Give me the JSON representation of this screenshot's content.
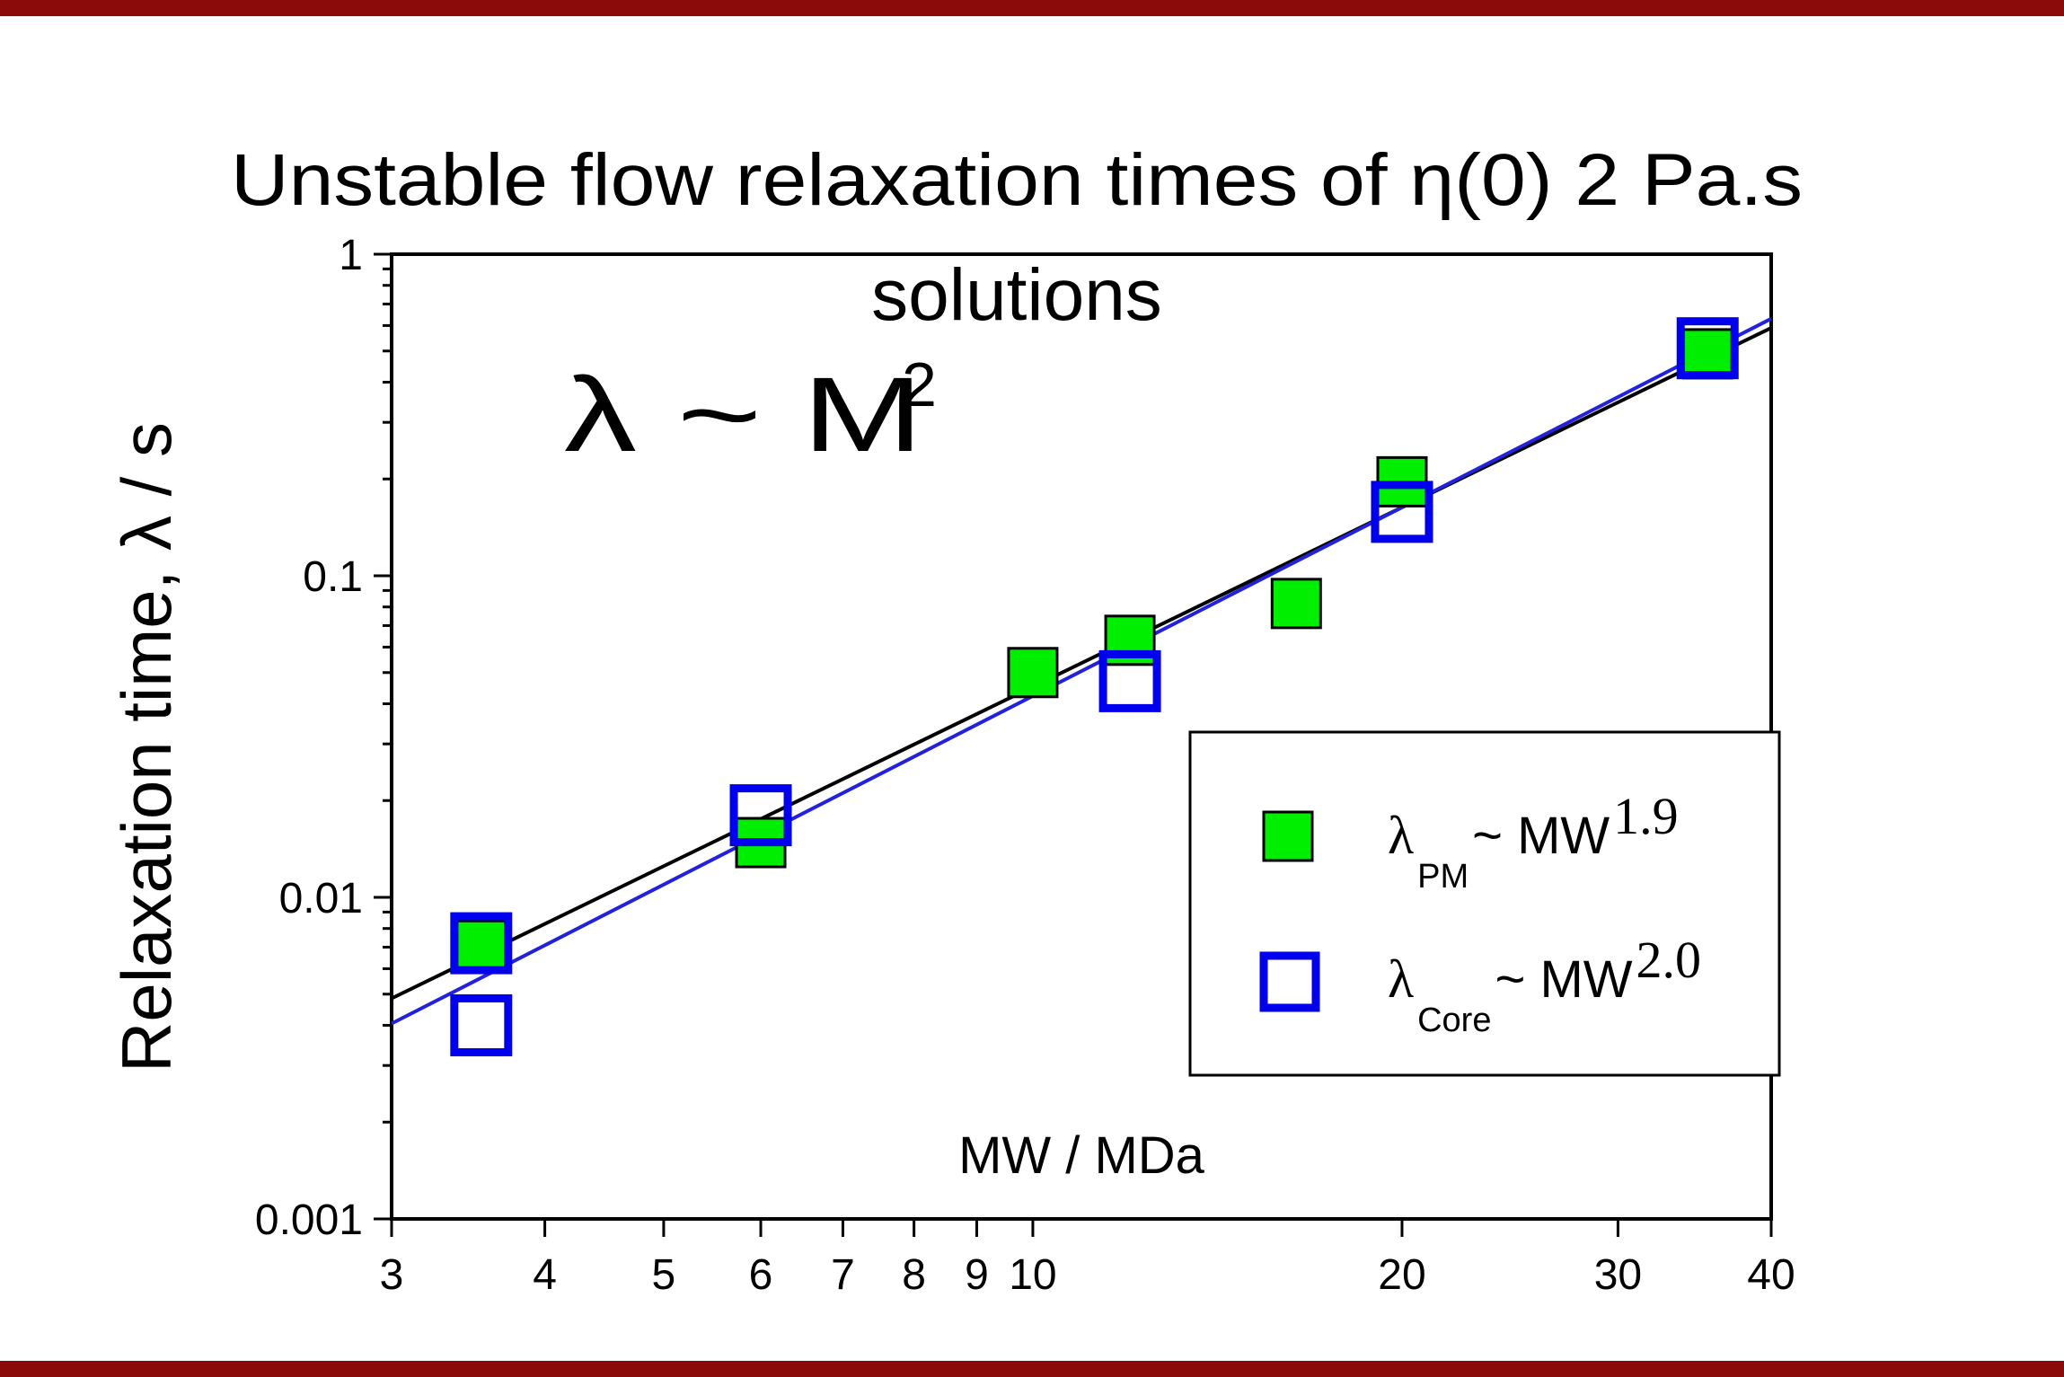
{
  "chart_data": {
    "type": "scatter",
    "title_line1": "Unstable flow relaxation times of η(0) 2 Pa.s",
    "title_line2": "solutions",
    "annotation": {
      "base": "λ ~ M",
      "sup": "2"
    },
    "xlabel": "MW / MDa",
    "ylabel": "Relaxation time, λ / s",
    "x_scale": "log",
    "y_scale": "log",
    "xlim": [
      3,
      40
    ],
    "ylim": [
      0.001,
      1
    ],
    "x_ticks": [
      3,
      4,
      5,
      6,
      7,
      8,
      9,
      10,
      20,
      30,
      40
    ],
    "x_tick_labels": [
      "3",
      "4",
      "5",
      "6",
      "7",
      "8",
      "9",
      "10",
      "20",
      "30",
      "40"
    ],
    "y_ticks": [
      0.001,
      0.01,
      0.1,
      1
    ],
    "y_tick_labels": [
      "0.001",
      "0.01",
      "0.1",
      "1"
    ],
    "grid": false,
    "legend_position": "lower-right",
    "colors": {
      "pm_fill": "#00ee00",
      "core_edge": "#0000ee",
      "fit_pm": "#000000",
      "fit_core": "#2222dd",
      "frame_band": "#8b0a0a"
    },
    "series": [
      {
        "legend": {
          "main": "λ",
          "sub": "PM",
          "tail": " ~ MW",
          "sup": "1.9"
        },
        "marker": "filled-square",
        "x": [
          3.55,
          6.0,
          10.0,
          12.0,
          16.4,
          20.0,
          35.5
        ],
        "y": [
          0.0071,
          0.0148,
          0.05,
          0.063,
          0.082,
          0.196,
          0.49
        ],
        "fit": {
          "x": [
            3.0,
            40.0
          ],
          "y": [
            0.00485,
            0.59
          ]
        }
      },
      {
        "legend": {
          "main": "λ",
          "sub": "Core",
          "tail": " ~ MW",
          "sup": "2.0"
        },
        "marker": "open-square",
        "x": [
          3.55,
          3.55,
          6.0,
          12.0,
          20.0,
          35.5
        ],
        "y": [
          0.0072,
          0.004,
          0.018,
          0.047,
          0.158,
          0.51
        ],
        "fit": {
          "x": [
            3.0,
            40.0
          ],
          "y": [
            0.00405,
            0.63
          ]
        }
      }
    ]
  }
}
